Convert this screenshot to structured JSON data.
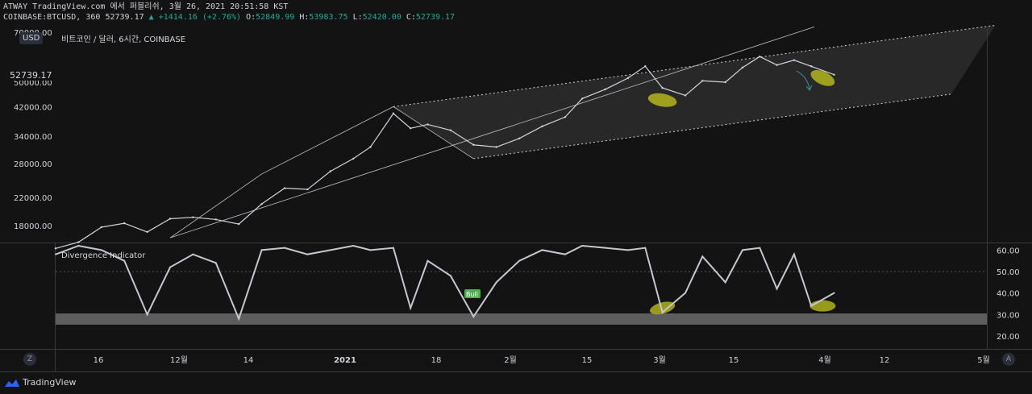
{
  "header": {
    "line1": "ATWAY TradingView.com 에서 퍼블리쉬, 3월 26, 2021 20:51:58 KST",
    "symbol": "COINBASE:BTCUSD, 360",
    "last": "52739.17",
    "change": "▲ +1414.16 (+2.76%)",
    "o_label": "O:",
    "o": "52849.99",
    "h_label": "H:",
    "h": "53983.75",
    "l_label": "L:",
    "l": "52420.00",
    "c_label": "C:",
    "c": "52739.17"
  },
  "main_pane": {
    "title": "비트코인 / 달러, 6시간, COINBASE",
    "currency_button": "USD",
    "price_badge": "52739.17"
  },
  "indicator_pane": {
    "title": "Divergence Indicator",
    "signal_label": "Bull"
  },
  "footer": {
    "brand": "TradingView",
    "left_button": "Z",
    "right_button": "A"
  },
  "colors": {
    "background": "#131313",
    "price_line": "#d1d4dc",
    "channel_fill": "#3a3a3a",
    "highlight": "#c8c81e",
    "bull_label": "#4caf50",
    "arrow": "#26a69a"
  },
  "chart_data": [
    {
      "type": "candlestick",
      "title": "비트코인 / 달러, 6시간, COINBASE",
      "y_ticks": [
        "70000.00",
        "50000.00",
        "42000.00",
        "34000.00",
        "28000.00",
        "22000.00",
        "18000.00"
      ],
      "x_ticks": [
        "16",
        "12월",
        "14",
        "2021",
        "18",
        "2월",
        "15",
        "3월",
        "15",
        "4월",
        "12",
        "5월"
      ],
      "series": [
        {
          "values": [
            {
              "d": "11-10",
              "v": 15300
            },
            {
              "d": "11-14",
              "v": 16000
            },
            {
              "d": "11-18",
              "v": 17800
            },
            {
              "d": "11-22",
              "v": 18300
            },
            {
              "d": "11-26",
              "v": 17200
            },
            {
              "d": "11-30",
              "v": 18900
            },
            {
              "d": "12-04",
              "v": 19100
            },
            {
              "d": "12-08",
              "v": 18800
            },
            {
              "d": "12-12",
              "v": 18200
            },
            {
              "d": "12-16",
              "v": 21000
            },
            {
              "d": "12-20",
              "v": 23500
            },
            {
              "d": "12-24",
              "v": 23300
            },
            {
              "d": "12-28",
              "v": 26500
            },
            {
              "d": "01-01",
              "v": 29000
            },
            {
              "d": "01-04",
              "v": 31500
            },
            {
              "d": "01-08",
              "v": 40000
            },
            {
              "d": "01-11",
              "v": 36000
            },
            {
              "d": "01-14",
              "v": 37000
            },
            {
              "d": "01-18",
              "v": 35500
            },
            {
              "d": "01-22",
              "v": 32000
            },
            {
              "d": "01-26",
              "v": 31500
            },
            {
              "d": "01-30",
              "v": 33500
            },
            {
              "d": "02-03",
              "v": 36500
            },
            {
              "d": "02-07",
              "v": 39000
            },
            {
              "d": "02-10",
              "v": 44500
            },
            {
              "d": "02-14",
              "v": 47500
            },
            {
              "d": "02-18",
              "v": 51500
            },
            {
              "d": "02-21",
              "v": 56000
            },
            {
              "d": "02-24",
              "v": 48000
            },
            {
              "d": "02-28",
              "v": 45500
            },
            {
              "d": "03-03",
              "v": 50500
            },
            {
              "d": "03-07",
              "v": 50000
            },
            {
              "d": "03-10",
              "v": 55500
            },
            {
              "d": "03-13",
              "v": 60000
            },
            {
              "d": "03-16",
              "v": 56500
            },
            {
              "d": "03-19",
              "v": 58500
            },
            {
              "d": "03-22",
              "v": 56000
            },
            {
              "d": "03-26",
              "v": 52739
            }
          ]
        }
      ]
    },
    {
      "type": "line",
      "title": "Divergence Indicator",
      "y_ticks": [
        "60.00",
        "50.00",
        "40.00",
        "30.00",
        "20.00"
      ],
      "ylim": [
        15,
        62
      ],
      "series": [
        {
          "values": [
            {
              "d": "11-10",
              "v": 58
            },
            {
              "d": "11-14",
              "v": 62
            },
            {
              "d": "11-18",
              "v": 60
            },
            {
              "d": "11-22",
              "v": 55
            },
            {
              "d": "11-26",
              "v": 30
            },
            {
              "d": "11-30",
              "v": 52
            },
            {
              "d": "12-04",
              "v": 58
            },
            {
              "d": "12-08",
              "v": 54
            },
            {
              "d": "12-12",
              "v": 28
            },
            {
              "d": "12-16",
              "v": 60
            },
            {
              "d": "12-20",
              "v": 61
            },
            {
              "d": "12-24",
              "v": 58
            },
            {
              "d": "12-28",
              "v": 60
            },
            {
              "d": "01-01",
              "v": 62
            },
            {
              "d": "01-04",
              "v": 60
            },
            {
              "d": "01-08",
              "v": 61
            },
            {
              "d": "01-11",
              "v": 33
            },
            {
              "d": "01-14",
              "v": 55
            },
            {
              "d": "01-18",
              "v": 48
            },
            {
              "d": "01-22",
              "v": 29
            },
            {
              "d": "01-26",
              "v": 45
            },
            {
              "d": "01-30",
              "v": 55
            },
            {
              "d": "02-03",
              "v": 60
            },
            {
              "d": "02-07",
              "v": 58
            },
            {
              "d": "02-10",
              "v": 62
            },
            {
              "d": "02-14",
              "v": 61
            },
            {
              "d": "02-18",
              "v": 60
            },
            {
              "d": "02-21",
              "v": 61
            },
            {
              "d": "02-24",
              "v": 31
            },
            {
              "d": "02-28",
              "v": 40
            },
            {
              "d": "03-03",
              "v": 57
            },
            {
              "d": "03-07",
              "v": 45
            },
            {
              "d": "03-10",
              "v": 60
            },
            {
              "d": "03-13",
              "v": 61
            },
            {
              "d": "03-16",
              "v": 42
            },
            {
              "d": "03-19",
              "v": 58
            },
            {
              "d": "03-22",
              "v": 34
            },
            {
              "d": "03-26",
              "v": 40
            }
          ]
        }
      ]
    }
  ]
}
